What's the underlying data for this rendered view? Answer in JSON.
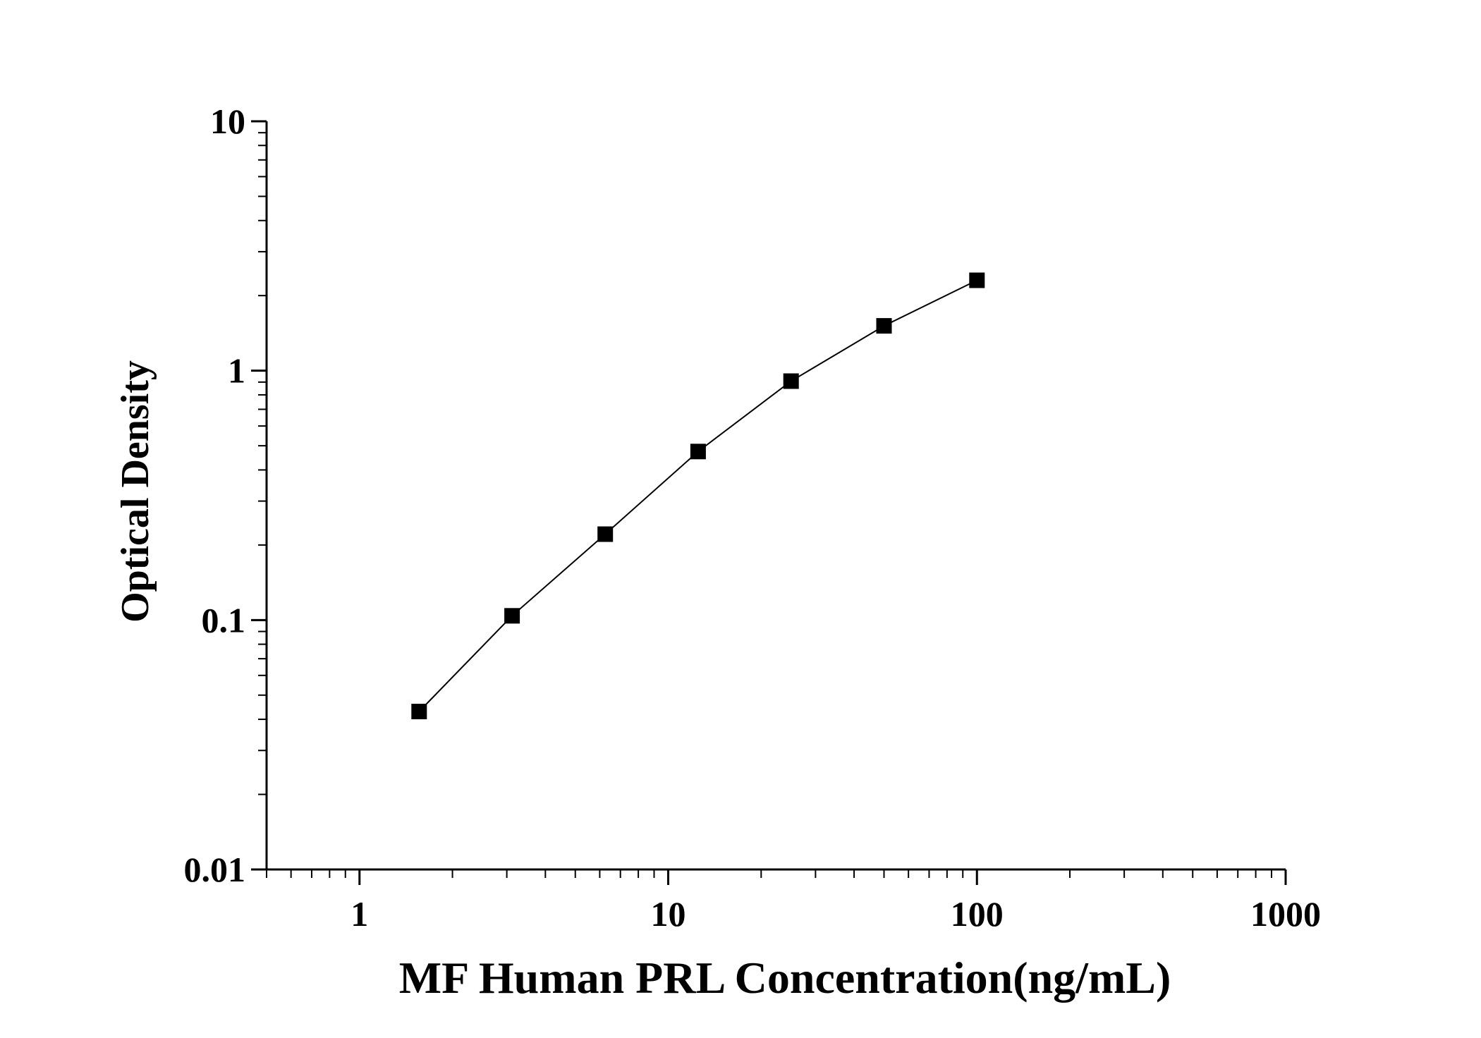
{
  "chart_data": {
    "type": "scatter",
    "title": "",
    "xlabel": "MF Human PRL Concentration(ng/mL)",
    "ylabel": "Optical Density",
    "xscale": "log",
    "yscale": "log",
    "xlim": [
      0.5,
      1000
    ],
    "ylim": [
      0.01,
      10
    ],
    "x_ticks": [
      1,
      10,
      100,
      1000
    ],
    "x_tick_labels": [
      "1",
      "10",
      "100",
      "1000"
    ],
    "y_ticks": [
      0.01,
      0.1,
      1,
      10
    ],
    "y_tick_labels": [
      "0.01",
      "0.1",
      "1",
      "10"
    ],
    "grid": false,
    "legend": "none",
    "marker": "square",
    "fit_line": true,
    "series": [
      {
        "x": [
          1.56,
          3.12,
          6.25,
          12.5,
          25,
          50,
          100
        ],
        "y": [
          0.043,
          0.104,
          0.221,
          0.474,
          0.908,
          1.513,
          2.303
        ]
      }
    ],
    "colors": {
      "marker": "#000000",
      "line": "#000000",
      "axis": "#000000"
    }
  }
}
